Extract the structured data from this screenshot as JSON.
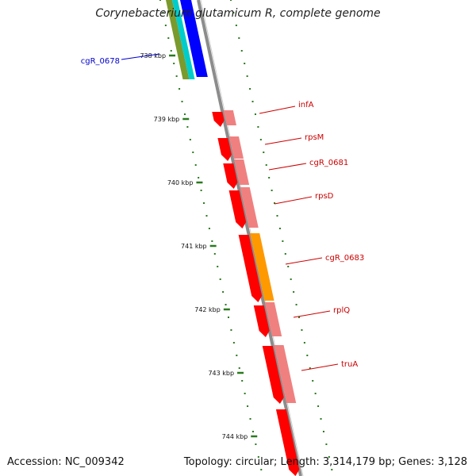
{
  "title": "Corynebacterium glutamicum R, complete genome",
  "accession": "Accession: NC_009342",
  "topology": "Topology: circular; Length: 3,314,179 bp; Genes: 3,128",
  "colors": {
    "backbone": "#8c8c8c",
    "tick": "#2a7a1e",
    "red": "#ff0000",
    "salmon": "#f08080",
    "orange": "#ff9900",
    "blue": "#0000ff",
    "cyan": "#00cccc",
    "olive": "#7a9a2e",
    "label_red": "#cc0000",
    "label_blue": "#0000cc"
  },
  "kbp_labels": [
    "738 kbp",
    "739 kbp",
    "740 kbp",
    "741 kbp",
    "742 kbp",
    "743 kbp",
    "744 kbp"
  ],
  "genes": [
    {
      "name": "cgR_0678",
      "color": "label_blue"
    },
    {
      "name": "infA",
      "color": "label_red"
    },
    {
      "name": "rpsM",
      "color": "label_red"
    },
    {
      "name": "cgR_0681",
      "color": "label_red"
    },
    {
      "name": "rpsD",
      "color": "label_red"
    },
    {
      "name": "cgR_0683",
      "color": "label_red"
    },
    {
      "name": "rplQ",
      "color": "label_red"
    },
    {
      "name": "truA",
      "color": "label_red"
    }
  ]
}
